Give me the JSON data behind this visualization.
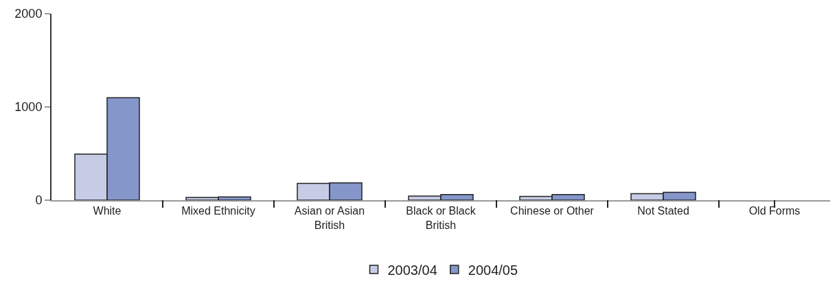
{
  "chart_data": {
    "type": "bar",
    "categories": [
      "White",
      "Mixed Ethnicity",
      "Asian or Asian British",
      "Black or Black British",
      "Chinese or Other",
      "Not Stated",
      "Old Forms"
    ],
    "series": [
      {
        "name": "2003/04",
        "color": "#c6cce6",
        "values": [
          495,
          30,
          180,
          45,
          40,
          70,
          null
        ]
      },
      {
        "name": "2004/05",
        "color": "#8596cb",
        "values": [
          1100,
          35,
          185,
          60,
          60,
          85,
          null
        ]
      }
    ],
    "ylim": [
      0,
      2000
    ],
    "yticks": [
      0,
      1000,
      2000
    ],
    "grid": false,
    "legend": "bottom"
  }
}
